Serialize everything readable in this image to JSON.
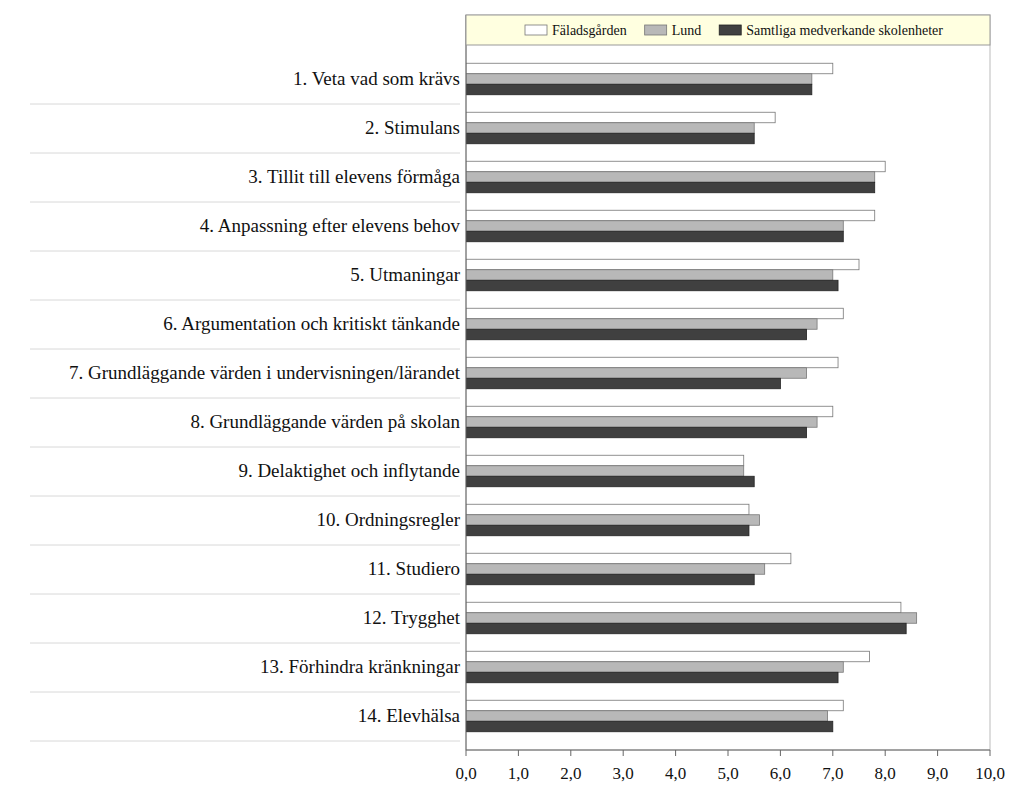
{
  "chart_data": {
    "type": "bar",
    "orientation": "horizontal",
    "categories": [
      "1. Veta vad som krävs",
      "2. Stimulans",
      "3. Tillit till elevens förmåga",
      "4. Anpassning efter elevens behov",
      "5. Utmaningar",
      "6. Argumentation och kritiskt tänkande",
      "7. Grundläggande värden i undervisningen/lärandet",
      "8. Grundläggande värden på skolan",
      "9. Delaktighet och inflytande",
      "10. Ordningsregler",
      "11. Studiero",
      "12. Trygghet",
      "13. Förhindra kränkningar",
      "14. Elevhälsa"
    ],
    "series": [
      {
        "name": "Fäladsgården",
        "color": "#ffffff",
        "values": [
          7.0,
          5.9,
          8.0,
          7.8,
          7.5,
          7.2,
          7.1,
          7.0,
          5.3,
          5.4,
          6.2,
          8.3,
          7.7,
          7.2
        ]
      },
      {
        "name": "Lund",
        "color": "#b8b8b8",
        "values": [
          6.6,
          5.5,
          7.8,
          7.2,
          7.0,
          6.7,
          6.5,
          6.7,
          5.3,
          5.6,
          5.7,
          8.6,
          7.2,
          6.9
        ]
      },
      {
        "name": "Samtliga medverkande skolenheter",
        "color": "#404040",
        "values": [
          6.6,
          5.5,
          7.8,
          7.2,
          7.1,
          6.5,
          6.0,
          6.5,
          5.5,
          5.4,
          5.5,
          8.4,
          7.1,
          7.0
        ]
      }
    ],
    "xlim": [
      0,
      10
    ],
    "xticks": [
      {
        "value": 0,
        "label": "0,0"
      },
      {
        "value": 1,
        "label": "1,0"
      },
      {
        "value": 2,
        "label": "2,0"
      },
      {
        "value": 3,
        "label": "3,0"
      },
      {
        "value": 4,
        "label": "4,0"
      },
      {
        "value": 5,
        "label": "5,0"
      },
      {
        "value": 6,
        "label": "6,0"
      },
      {
        "value": 7,
        "label": "7,0"
      },
      {
        "value": 8,
        "label": "8,0"
      },
      {
        "value": 9,
        "label": "9,0"
      },
      {
        "value": 10,
        "label": "10,0"
      }
    ],
    "grid": false,
    "legend": "top"
  }
}
